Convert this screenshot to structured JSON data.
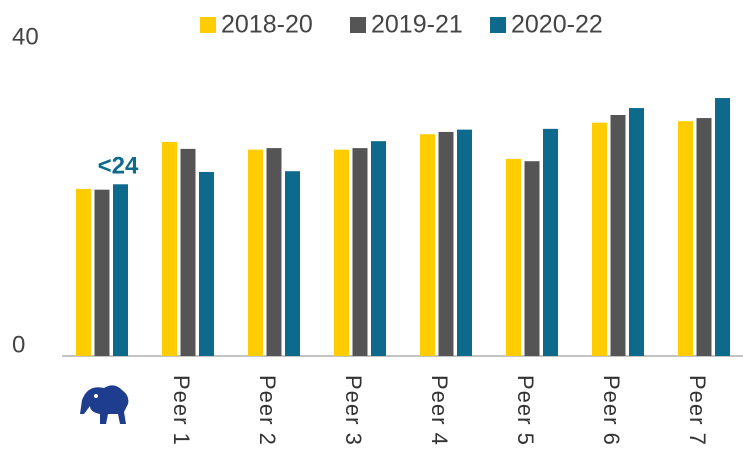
{
  "chart_data": {
    "type": "bar",
    "categories": [
      null,
      "Peer 1",
      "Peer 2",
      "Peer 3",
      "Peer 4",
      "Peer 5",
      "Peer 6",
      "Peer 7"
    ],
    "series": [
      {
        "name": "2018-20",
        "color": "#ffcc00",
        "values": [
          21.7,
          27.8,
          26.8,
          26.8,
          28.8,
          25.6,
          30.3,
          30.5
        ]
      },
      {
        "name": "2019-21",
        "color": "#555555",
        "values": [
          21.6,
          26.9,
          27.0,
          27.0,
          29.1,
          25.3,
          31.3,
          30.9
        ]
      },
      {
        "name": "2020-22",
        "color": "#0e6a8c",
        "values": [
          22.3,
          23.9,
          24.0,
          27.9,
          29.4,
          29.5,
          32.2,
          33.5
        ]
      }
    ],
    "annotation": "<24",
    "ylim": [
      0,
      40
    ],
    "yticks": [
      0,
      40
    ],
    "grid": false,
    "legend": "top"
  }
}
